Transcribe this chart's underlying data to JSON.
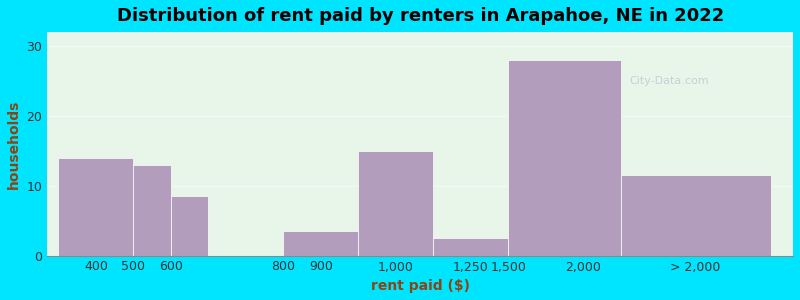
{
  "title": "Distribution of rent paid by renters in Arapahoe, NE in 2022",
  "xlabel": "rent paid ($)",
  "ylabel": "households",
  "bar_color": "#b39dbd",
  "background_outer": "#00e5ff",
  "background_inner": "#e8f5e9",
  "bar_heights": [
    14,
    13,
    8.5,
    3.5,
    15,
    2.5,
    28,
    11.5
  ],
  "bar_lefts": [
    0,
    1,
    1.5,
    3,
    4,
    5,
    6,
    7.5
  ],
  "bar_widths": [
    1,
    0.5,
    0.5,
    1,
    1,
    1,
    1.5,
    2.0
  ],
  "xtick_positions": [
    0.5,
    1.0,
    1.5,
    3.0,
    3.5,
    4.5,
    5.5,
    6.0,
    7.0,
    8.5
  ],
  "xtick_labels": [
    "400",
    "500",
    "600",
    "800",
    "900",
    "1,000",
    "1,250",
    "1,500",
    "2,000",
    "> 2,000"
  ],
  "ytick_positions": [
    0,
    10,
    20,
    30
  ],
  "ylim": [
    0,
    32
  ],
  "xlim": [
    -0.15,
    9.8
  ],
  "title_fontsize": 13,
  "axis_label_fontsize": 10,
  "tick_fontsize": 9,
  "xlabel_color": "#8B4513",
  "ylabel_color": "#8B4513"
}
